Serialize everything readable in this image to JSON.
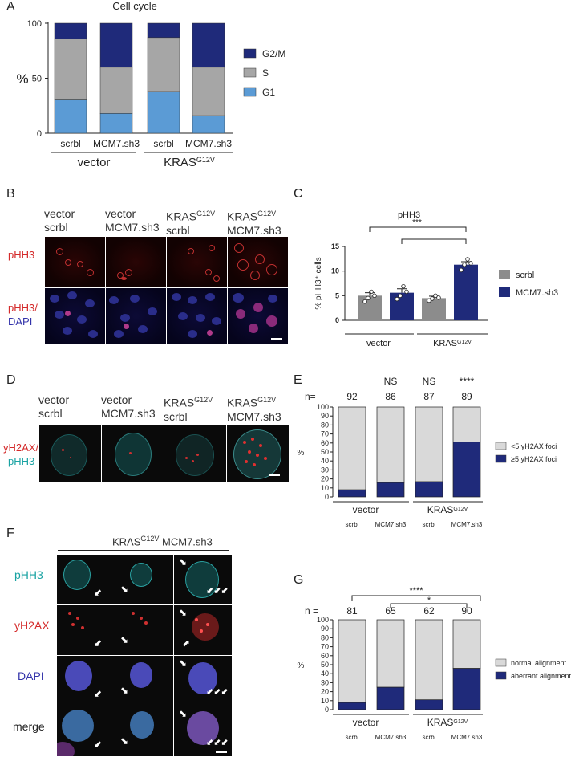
{
  "panels": {
    "A": "A",
    "B": "B",
    "C": "C",
    "D": "D",
    "E": "E",
    "F": "F",
    "G": "G"
  },
  "panelA": {
    "chart_data": {
      "type": "bar",
      "title": "Cell cycle",
      "ylabel": "%",
      "ylim": [
        0,
        100
      ],
      "yticks": [
        "0",
        "50",
        "100"
      ],
      "categories": [
        "scrbl",
        "MCM7.sh3",
        "scrbl",
        "MCM7.sh3"
      ],
      "groups": [
        {
          "label": "vector",
          "sup": ""
        },
        {
          "label": "KRAS",
          "sup": "G12V"
        }
      ],
      "series": [
        {
          "name": "G1",
          "color": "#5b9bd5",
          "values": [
            31,
            18,
            38,
            16
          ]
        },
        {
          "name": "S",
          "color": "#a6a6a6",
          "values": [
            55,
            42,
            49,
            44
          ]
        },
        {
          "name": "G2/M",
          "color": "#1f2a7a",
          "values": [
            14,
            40,
            13,
            40
          ]
        }
      ],
      "legend": [
        "G2/M",
        "S",
        "G1"
      ]
    }
  },
  "panelB": {
    "col_labels": [
      {
        "l1": "vector",
        "l2": "scrbl",
        "sup": ""
      },
      {
        "l1": "vector",
        "l2": "MCM7.sh3",
        "sup": ""
      },
      {
        "l1": "KRAS",
        "l2": "scrbl",
        "sup": "G12V"
      },
      {
        "l1": "KRAS",
        "l2": "MCM7.sh3",
        "sup": "G12V"
      }
    ],
    "row_labels": [
      "pHH3",
      "pHH3/",
      "DAPI"
    ]
  },
  "panelC": {
    "chart_data": {
      "type": "bar",
      "title": "pHH3",
      "ylabel": "% pHH3⁺ cells",
      "ylim": [
        0,
        15
      ],
      "yticks": [
        "0",
        "5",
        "10",
        "15"
      ],
      "categories": [
        "scrbl",
        "MCM7.sh3",
        "scrbl",
        "MCM7.sh3"
      ],
      "values": [
        5.0,
        5.6,
        4.5,
        11.3
      ],
      "errors": [
        0.6,
        0.8,
        0.4,
        0.6
      ],
      "points": [
        [
          3.8,
          4.5,
          5.8,
          5.0
        ],
        [
          4.3,
          5.0,
          6.9,
          5.8
        ],
        [
          4.0,
          4.4,
          5.0,
          4.6
        ],
        [
          10.2,
          11.3,
          12.4,
          11.6
        ]
      ],
      "colors": [
        "#8c8c8c",
        "#1f2a7a",
        "#8c8c8c",
        "#1f2a7a"
      ],
      "groups": [
        {
          "label": "vector",
          "sup": ""
        },
        {
          "label": "KRAS",
          "sup": "G12V"
        }
      ],
      "legend": [
        {
          "name": "scrbl",
          "color": "#8c8c8c"
        },
        {
          "name": "MCM7.sh3",
          "color": "#1f2a7a"
        }
      ],
      "sig": [
        "***",
        "***"
      ]
    }
  },
  "panelD": {
    "col_labels": [
      {
        "l1": "vector",
        "l2": "scrbl",
        "sup": ""
      },
      {
        "l1": "vector",
        "l2": "MCM7.sh3",
        "sup": ""
      },
      {
        "l1": "KRAS",
        "l2": "scrbl",
        "sup": "G12V"
      },
      {
        "l1": "KRAS",
        "l2": "MCM7.sh3",
        "sup": "G12V"
      }
    ],
    "row_label_1": "yH2AX/",
    "row_label_2": "pHH3"
  },
  "panelE": {
    "chart_data": {
      "type": "bar",
      "ylabel": "%",
      "ylim": [
        0,
        100
      ],
      "yticks": [
        "0",
        "10",
        "20",
        "30",
        "40",
        "50",
        "60",
        "70",
        "80",
        "90",
        "100"
      ],
      "categories": [
        "scrbl",
        "MCM7.sh3",
        "scrbl",
        "MCM7.sh3"
      ],
      "n_label": "n=",
      "n": [
        "92",
        "86",
        "87",
        "89"
      ],
      "sig": [
        "",
        "NS",
        "NS",
        "****"
      ],
      "series": [
        {
          "name": "≥5 yH2AX foci",
          "color": "#1f2a7a",
          "values": [
            8,
            16,
            17,
            61
          ]
        },
        {
          "name": "<5 yH2AX foci",
          "color": "#d9d9d9",
          "values": [
            92,
            84,
            83,
            39
          ]
        }
      ],
      "legend": [
        "<5 yH2AX foci",
        "≥5 yH2AX foci"
      ],
      "groups": [
        {
          "label": "vector",
          "sup": ""
        },
        {
          "label": "KRAS",
          "sup": "G12V"
        }
      ]
    }
  },
  "panelF": {
    "title": "KRAS",
    "title_sup": "G12V",
    "title_rest": " MCM7.sh3",
    "row_labels": [
      "pHH3",
      "yH2AX",
      "DAPI",
      "merge"
    ]
  },
  "panelG": {
    "chart_data": {
      "type": "bar",
      "ylabel": "%",
      "ylim": [
        0,
        100
      ],
      "yticks": [
        "0",
        "10",
        "20",
        "30",
        "40",
        "50",
        "60",
        "70",
        "80",
        "90",
        "100"
      ],
      "categories": [
        "scrbl",
        "MCM7.sh3",
        "scrbl",
        "MCM7.sh3"
      ],
      "n_label": "n =",
      "n": [
        "81",
        "65",
        "62",
        "90"
      ],
      "sig": [
        "****",
        "*"
      ],
      "series": [
        {
          "name": "aberrant alignment",
          "color": "#1f2a7a",
          "values": [
            8,
            25,
            11,
            46
          ]
        },
        {
          "name": "normal alignment",
          "color": "#d9d9d9",
          "values": [
            92,
            75,
            89,
            54
          ]
        }
      ],
      "legend": [
        "normal alignment",
        "aberrant alignment"
      ],
      "groups": [
        {
          "label": "vector",
          "sup": ""
        },
        {
          "label": "KRAS",
          "sup": "G12V"
        }
      ]
    }
  }
}
